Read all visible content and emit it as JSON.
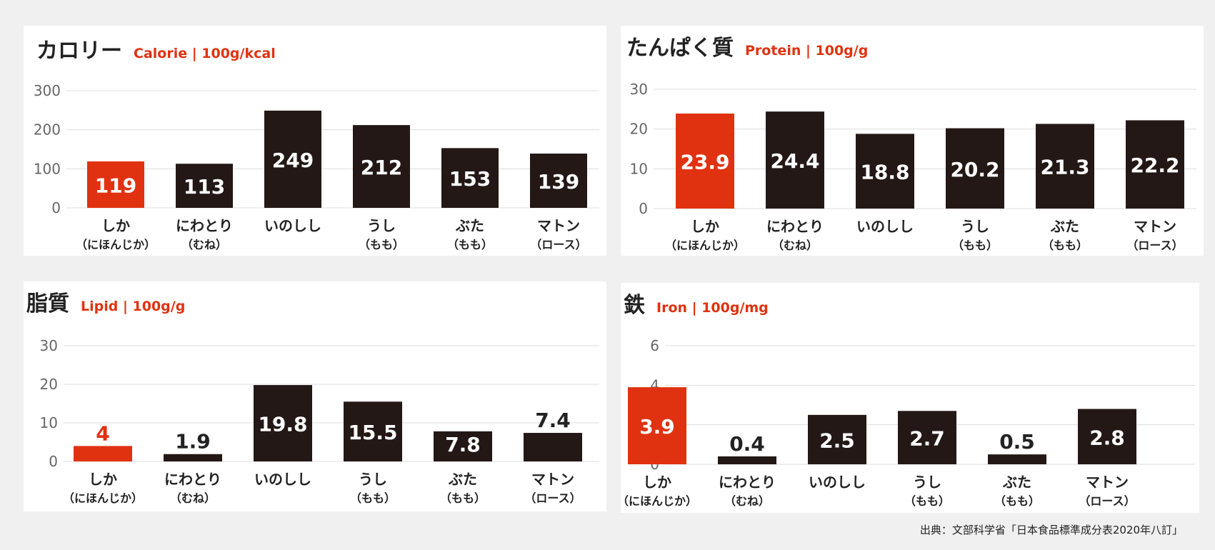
{
  "chart_data": [
    {
      "type": "bar",
      "title": "カロリー",
      "subtitle": "Calorie | 100g/kcal",
      "categories": [
        [
          "しか",
          "（にほんじか）"
        ],
        [
          "にわとり",
          "（むね）"
        ],
        [
          "いのしし",
          ""
        ],
        [
          "うし",
          "（もも）"
        ],
        [
          "ぶた",
          "（もも）"
        ],
        [
          "マトン",
          "（ロース）"
        ]
      ],
      "values": [
        119,
        113,
        249,
        212,
        153,
        139
      ],
      "value_labels": [
        "119",
        "113",
        "249",
        "212",
        "153",
        "139"
      ],
      "ylim": [
        0,
        300
      ],
      "yticks": [
        "0",
        "100",
        "200",
        "300"
      ],
      "ytick_values": [
        0,
        100,
        200,
        300
      ],
      "highlight_index": 0,
      "grid": true
    },
    {
      "type": "bar",
      "title": "たんぱく質",
      "subtitle": "Protein | 100g/g",
      "categories": [
        [
          "しか",
          "（にほんじか）"
        ],
        [
          "にわとり",
          "（むね）"
        ],
        [
          "いのしし",
          ""
        ],
        [
          "うし",
          "（もも）"
        ],
        [
          "ぶた",
          "（もも）"
        ],
        [
          "マトン",
          "（ロース）"
        ]
      ],
      "values": [
        23.9,
        24.4,
        18.8,
        20.2,
        21.3,
        22.2
      ],
      "value_labels": [
        "23.9",
        "24.4",
        "18.8",
        "20.2",
        "21.3",
        "22.2"
      ],
      "ylim": [
        0,
        30
      ],
      "yticks": [
        "0",
        "10",
        "20",
        "30"
      ],
      "ytick_values": [
        0,
        10,
        20,
        30
      ],
      "highlight_index": 0,
      "grid": true
    },
    {
      "type": "bar",
      "title": "脂質",
      "subtitle": "Lipid | 100g/g",
      "categories": [
        [
          "しか",
          "（にほんじか）"
        ],
        [
          "にわとり",
          "（むね）"
        ],
        [
          "いのしし",
          ""
        ],
        [
          "うし",
          "（もも）"
        ],
        [
          "ぶた",
          "（もも）"
        ],
        [
          "マトン",
          "（ロース）"
        ]
      ],
      "values": [
        4,
        1.9,
        19.8,
        15.5,
        7.8,
        7.4
      ],
      "value_labels": [
        "4",
        "1.9",
        "19.8",
        "15.5",
        "7.8",
        "7.4"
      ],
      "ylim": [
        0,
        30
      ],
      "yticks": [
        "0",
        "10",
        "20",
        "30"
      ],
      "ytick_values": [
        0,
        10,
        20,
        30
      ],
      "highlight_index": 0,
      "grid": true
    },
    {
      "type": "bar",
      "title": "鉄",
      "subtitle": "Iron | 100g/mg",
      "categories": [
        [
          "しか",
          "（にほんじか）"
        ],
        [
          "にわとり",
          "（むね）"
        ],
        [
          "いのしし",
          ""
        ],
        [
          "うし",
          "（もも）"
        ],
        [
          "ぶた",
          "（もも）"
        ],
        [
          "マトン",
          "（ロース）"
        ]
      ],
      "values": [
        3.9,
        0.4,
        2.5,
        2.7,
        0.5,
        2.8
      ],
      "value_labels": [
        "3.9",
        "0.4",
        "2.5",
        "2.7",
        "0.5",
        "2.8"
      ],
      "ylim": [
        0,
        6
      ],
      "yticks": [
        "0",
        "2",
        "4",
        "6"
      ],
      "ytick_values": [
        0,
        2,
        4,
        6
      ],
      "highlight_index": 0,
      "grid": true
    }
  ],
  "colors": {
    "highlight": "#e03210",
    "bar": "#231815",
    "grid": "#dddddd",
    "axis_text": "#666666",
    "label_text": "#222222"
  },
  "source": "出典：文部科学省「日本食品標準成分表2020年八訂」"
}
